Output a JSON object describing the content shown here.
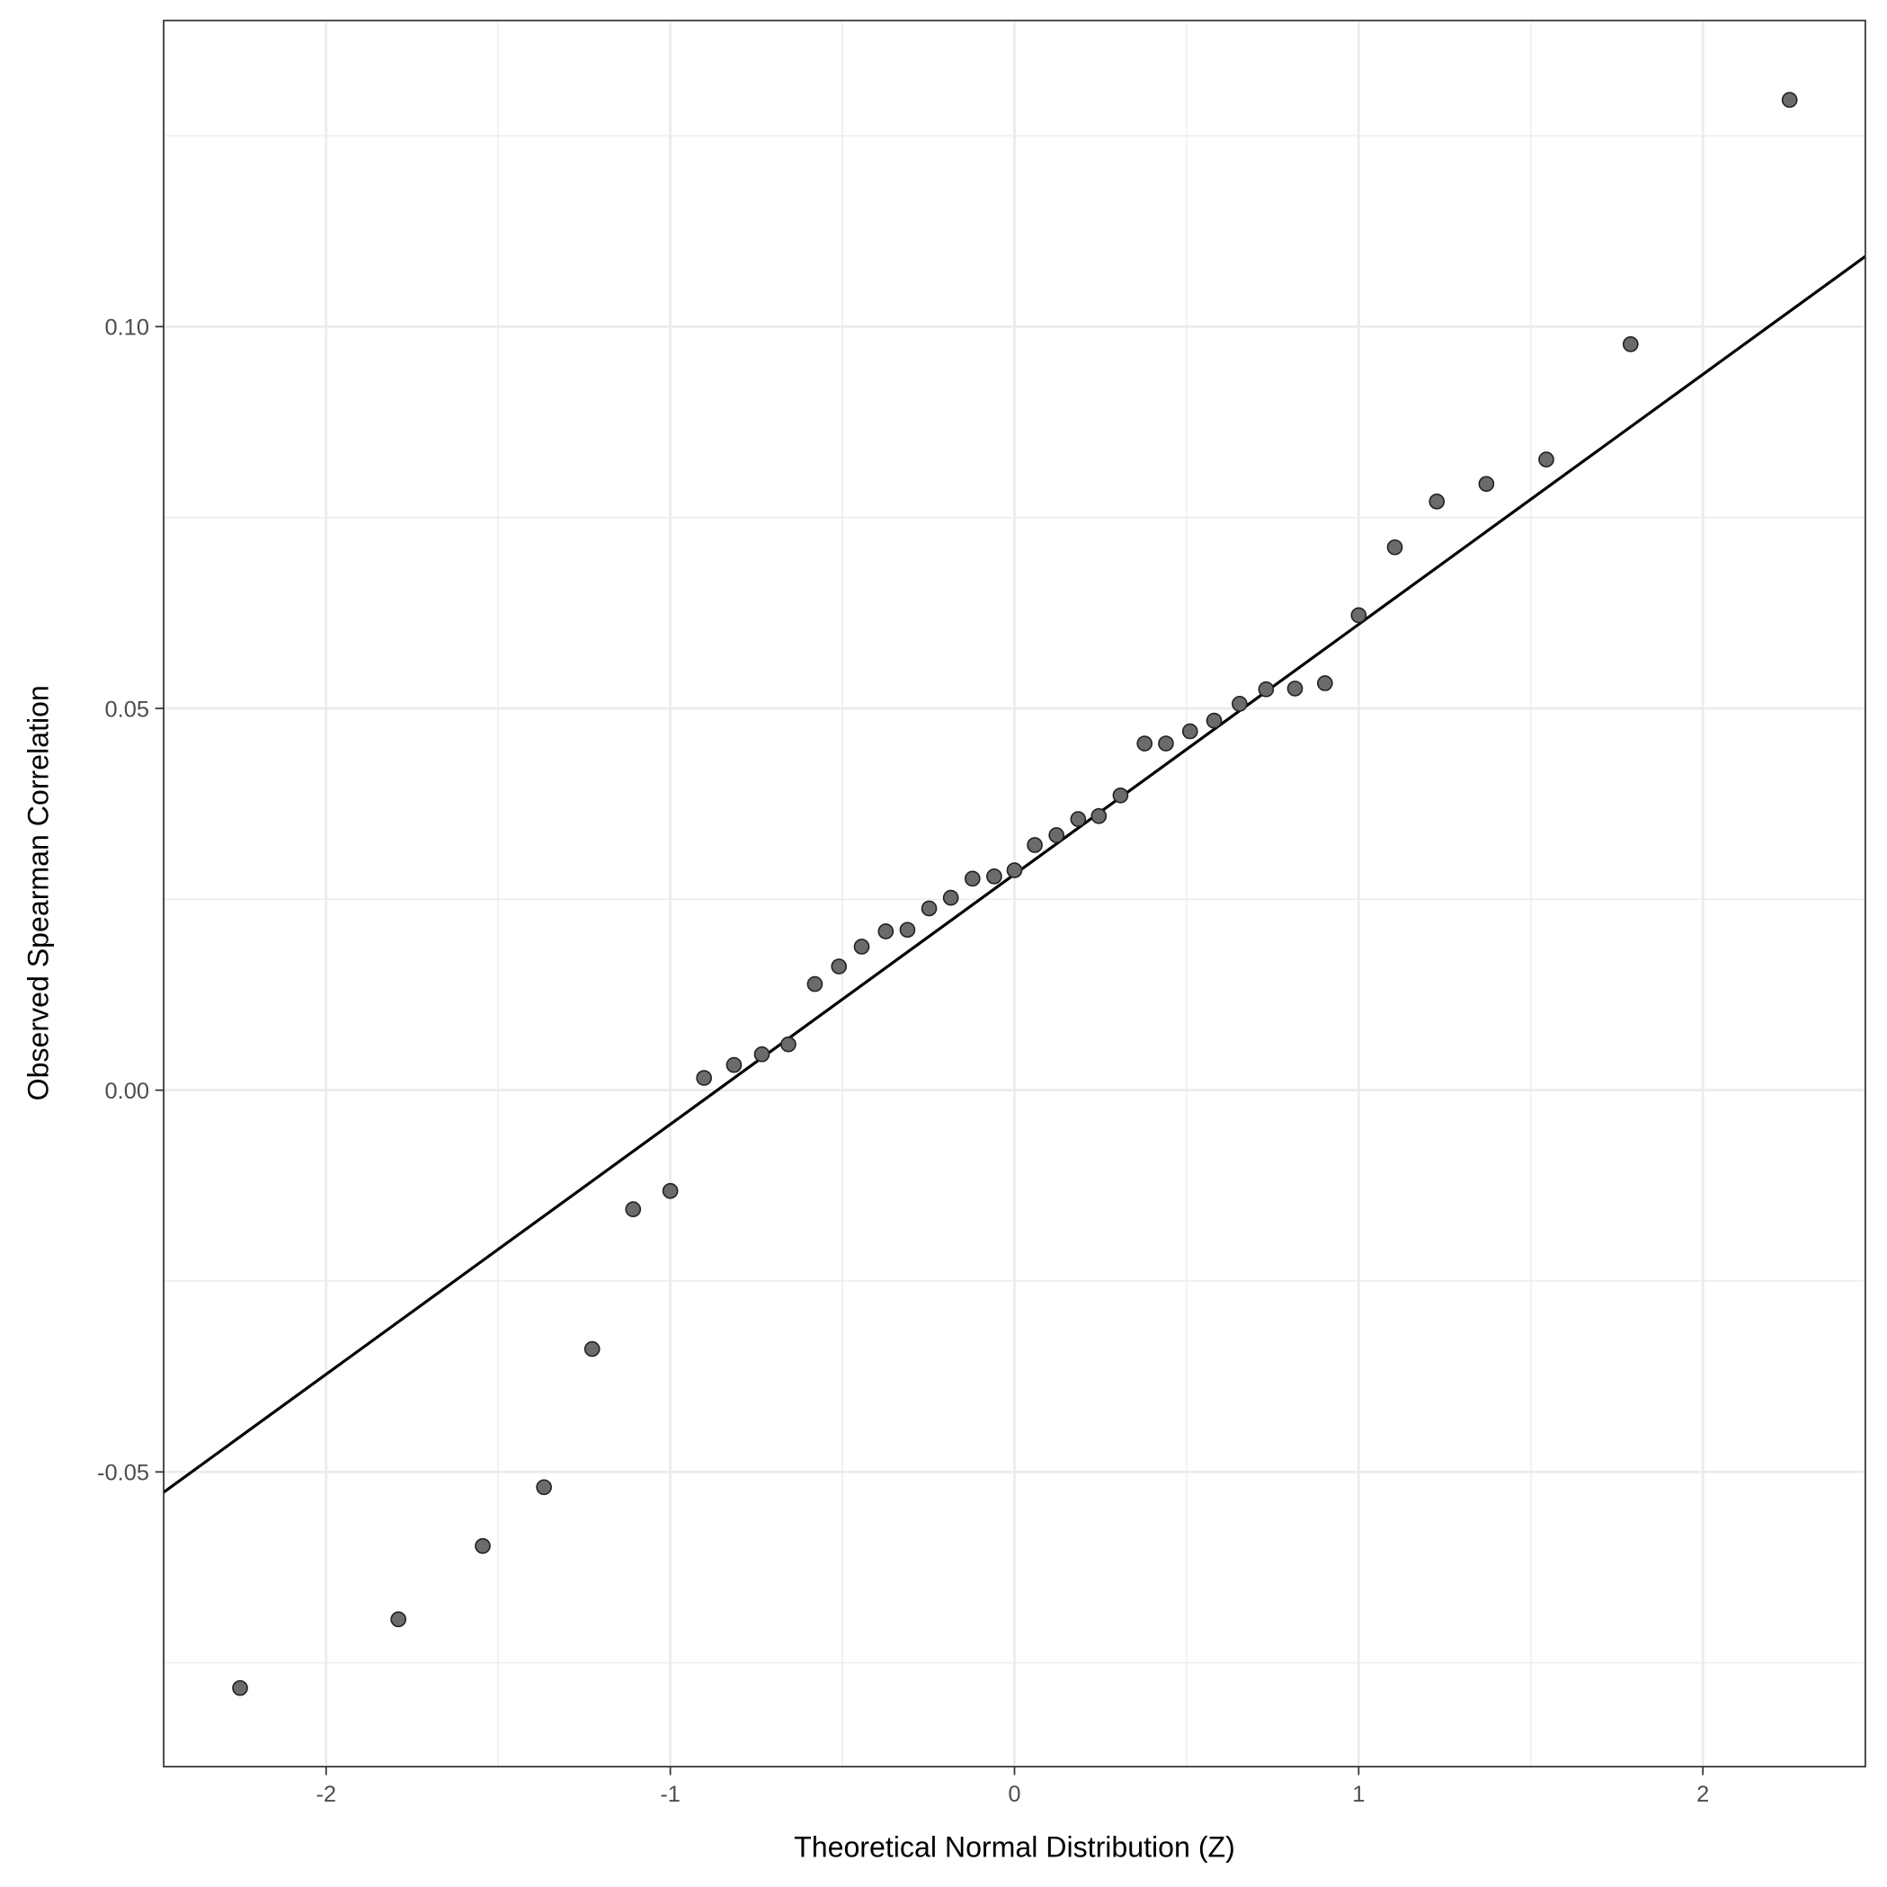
{
  "chart_data": {
    "type": "scatter",
    "title": "",
    "xlabel": "Theoretical Normal Distribution (Z)",
    "ylabel": "Observed Spearman Correlation",
    "xlim": [
      -2.472,
      2.472
    ],
    "ylim": [
      -0.0886,
      0.1401
    ],
    "xticks": [
      -2,
      -1,
      0,
      1,
      2
    ],
    "xtick_labels": [
      "-2",
      "-1",
      "0",
      "1",
      "2"
    ],
    "yticks": [
      -0.05,
      0,
      0.05,
      0.1
    ],
    "ytick_labels": [
      "-0.05",
      "0.00",
      "0.05",
      "0.10"
    ],
    "grid": true,
    "point_color": "#6b6b6b",
    "reference_line": {
      "slope": 0.03274,
      "intercept": 0.02827,
      "color": "#000000"
    },
    "points": [
      [
        -2.25,
        -0.0783
      ],
      [
        -1.79,
        -0.0693
      ],
      [
        -1.545,
        -0.0597
      ],
      [
        -1.367,
        -0.052
      ],
      [
        -1.227,
        -0.0339
      ],
      [
        -1.108,
        -0.0156
      ],
      [
        -1.0,
        -0.0132
      ],
      [
        -0.902,
        0.0016
      ],
      [
        -0.815,
        0.0033
      ],
      [
        -0.734,
        0.0047
      ],
      [
        -0.657,
        0.006
      ],
      [
        -0.58,
        0.0139
      ],
      [
        -0.51,
        0.0162
      ],
      [
        -0.444,
        0.0188
      ],
      [
        -0.374,
        0.0208
      ],
      [
        -0.311,
        0.021
      ],
      [
        -0.248,
        0.0238
      ],
      [
        -0.185,
        0.0252
      ],
      [
        -0.122,
        0.0277
      ],
      [
        -0.059,
        0.028
      ],
      [
        0,
        0.0288
      ],
      [
        0.059,
        0.0321
      ],
      [
        0.122,
        0.0334
      ],
      [
        0.185,
        0.0355
      ],
      [
        0.245,
        0.0359
      ],
      [
        0.308,
        0.0386
      ],
      [
        0.378,
        0.0454
      ],
      [
        0.44,
        0.0454
      ],
      [
        0.51,
        0.047
      ],
      [
        0.58,
        0.0484
      ],
      [
        0.654,
        0.0506
      ],
      [
        0.731,
        0.0525
      ],
      [
        0.815,
        0.0526
      ],
      [
        0.902,
        0.0533
      ],
      [
        1.0,
        0.0622
      ],
      [
        1.105,
        0.0711
      ],
      [
        1.227,
        0.0771
      ],
      [
        1.371,
        0.0794
      ],
      [
        1.545,
        0.0826
      ],
      [
        1.79,
        0.0977
      ],
      [
        2.252,
        0.1297
      ]
    ]
  }
}
